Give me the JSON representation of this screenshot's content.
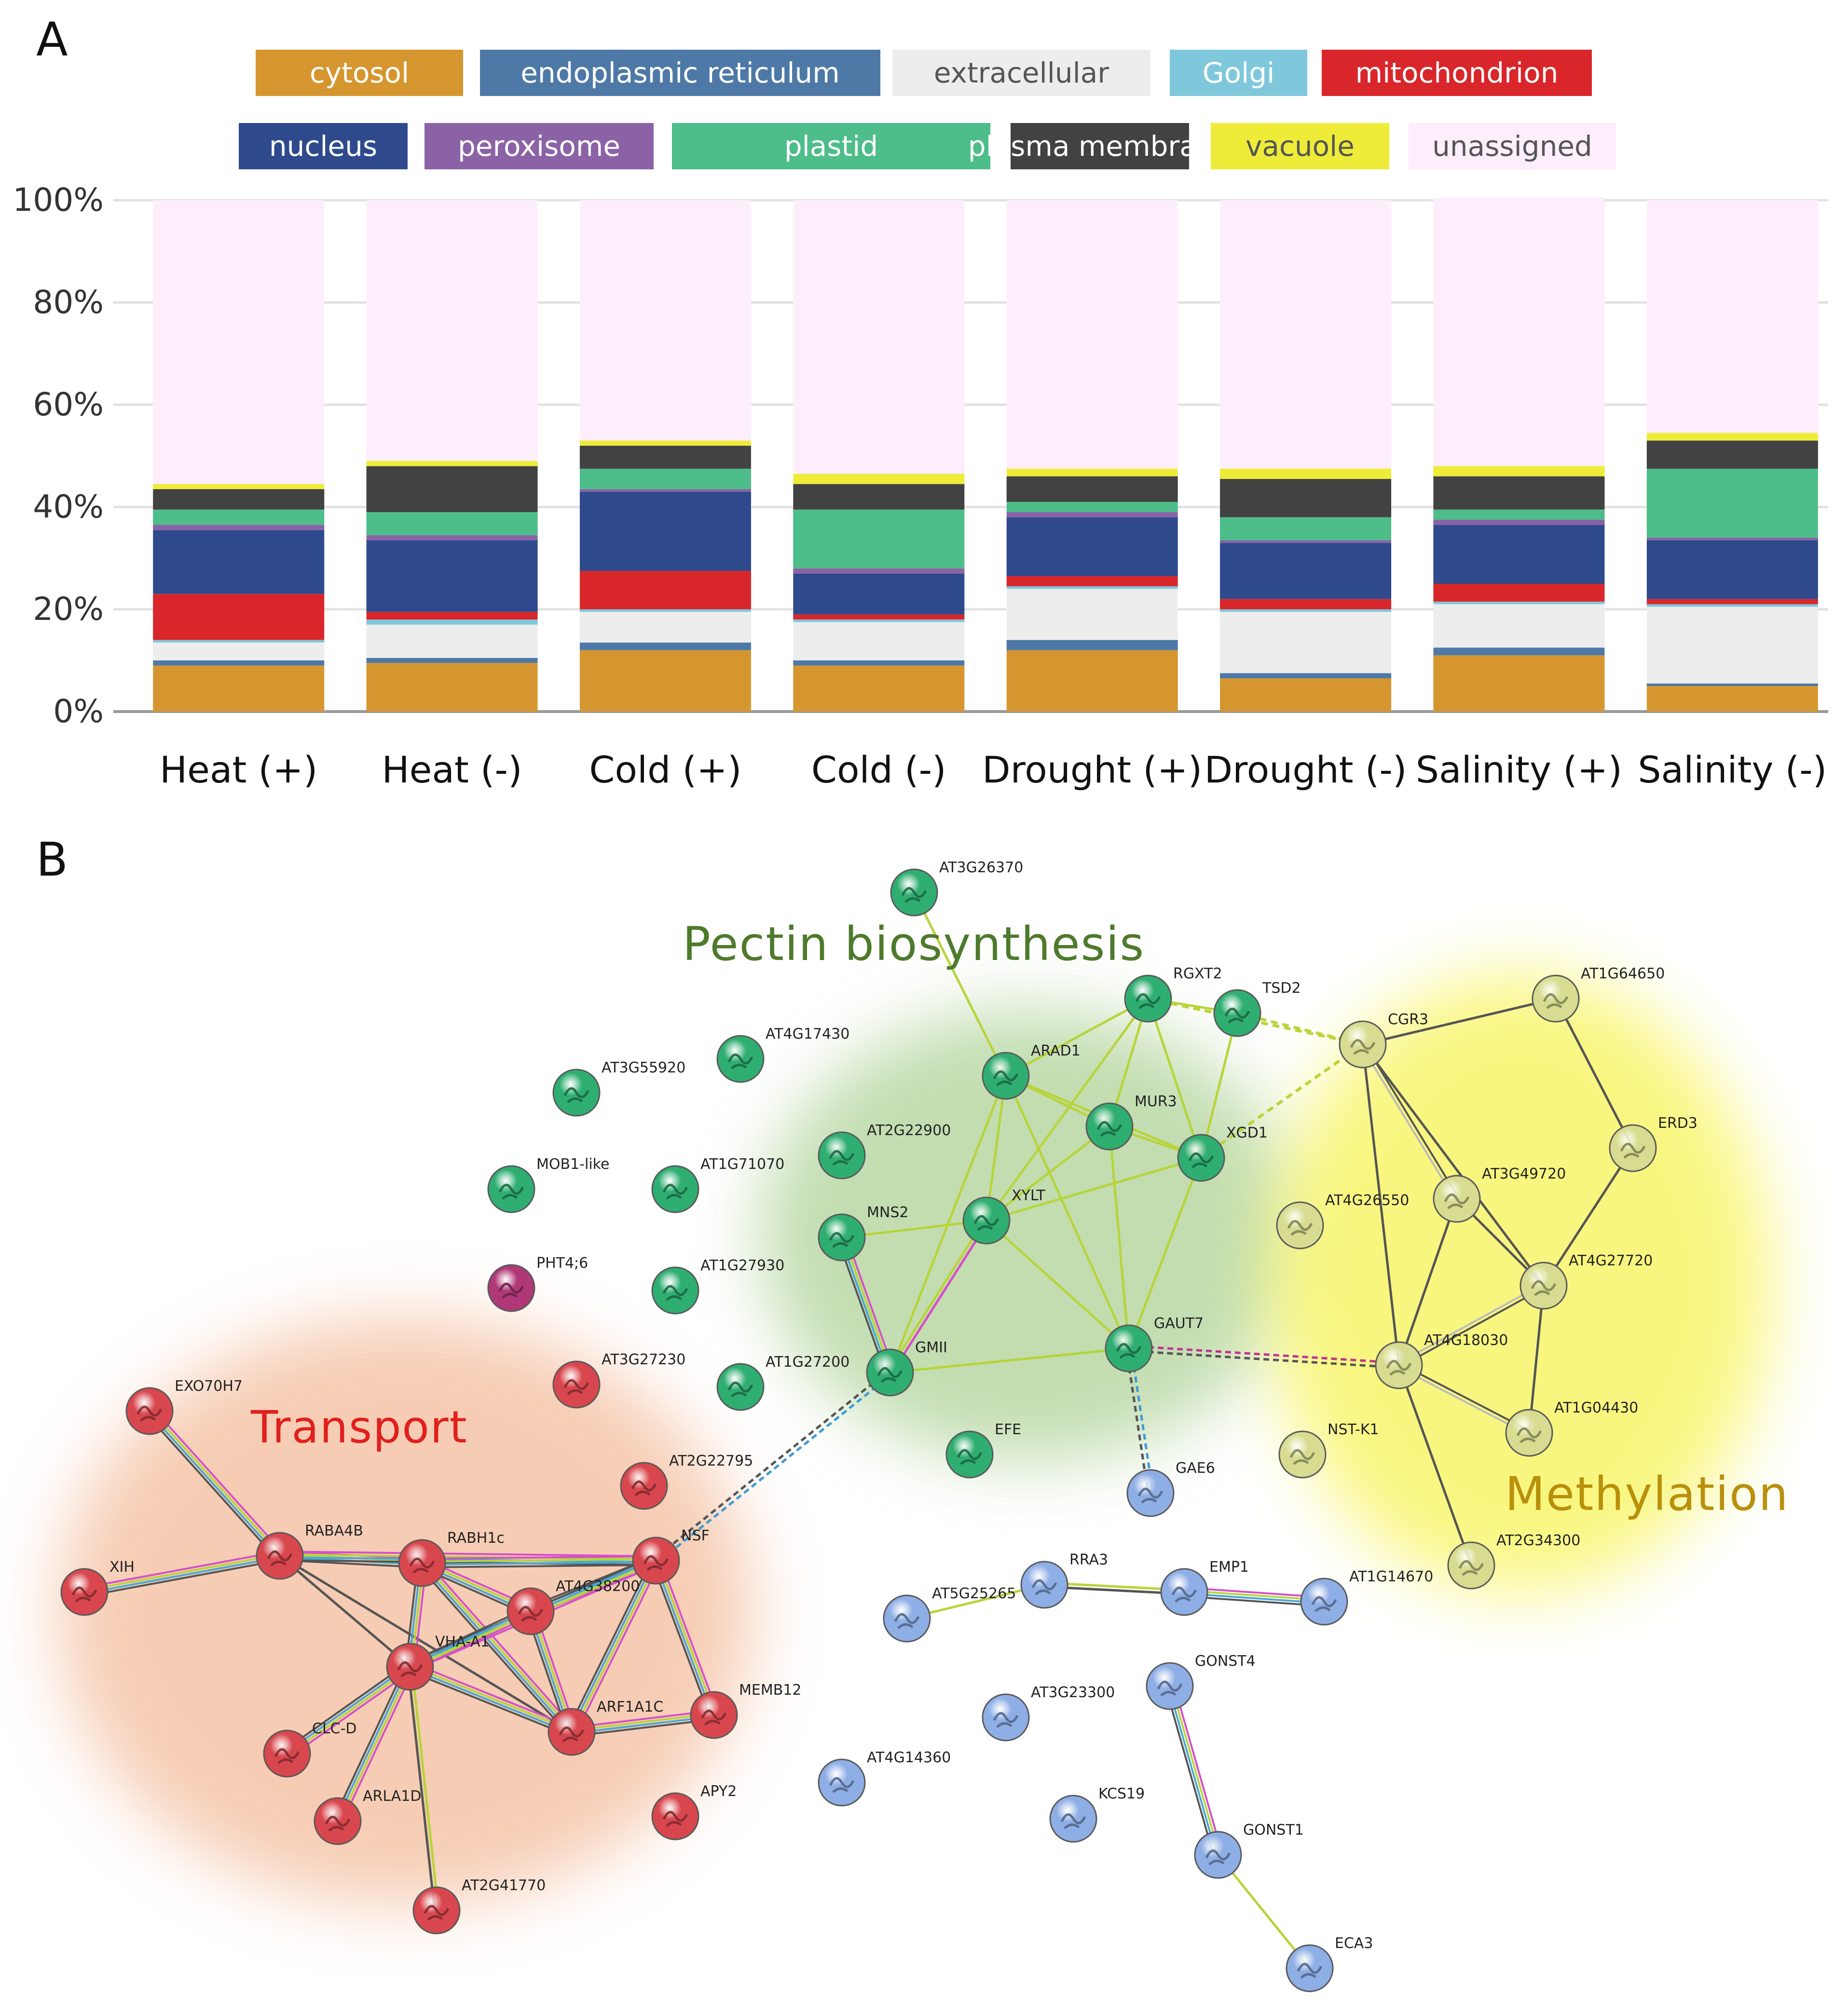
{
  "panel_a_label": "A",
  "panel_b_label": "B",
  "chart_data": {
    "type": "bar",
    "stacked": true,
    "title": "",
    "xlabel": "",
    "ylabel": "",
    "ylim": [
      0,
      100
    ],
    "yticks": [
      "0%",
      "20%",
      "40%",
      "60%",
      "80%",
      "100%"
    ],
    "grid": true,
    "legend_position": "top",
    "categories": [
      "Heat (+)",
      "Heat (-)",
      "Cold (+)",
      "Cold (-)",
      "Drought (+)",
      "Drought (-)",
      "Salinity (+)",
      "Salinity (-)"
    ],
    "series": [
      {
        "name": "cytosol",
        "color": "#D6962F",
        "values": [
          9,
          9.5,
          12,
          9,
          12,
          6.5,
          11,
          5
        ]
      },
      {
        "name": "endoplasmic reticulum",
        "color": "#4E79A7",
        "values": [
          1,
          1,
          1.5,
          1,
          2,
          1,
          1.5,
          0.5
        ]
      },
      {
        "name": "extracellular",
        "color": "#EDEDED",
        "values": [
          3.5,
          6.5,
          6,
          7.5,
          10,
          12,
          8.5,
          15
        ]
      },
      {
        "name": "Golgi",
        "color": "#7FC8DC",
        "values": [
          0.5,
          1,
          0.5,
          0.5,
          0.5,
          0.5,
          0.5,
          0.5
        ]
      },
      {
        "name": "mitochondrion",
        "color": "#D9262B",
        "values": [
          9,
          1.5,
          7.5,
          1,
          2,
          2,
          3.5,
          1
        ]
      },
      {
        "name": "nucleus",
        "color": "#2E4A8C",
        "values": [
          12.5,
          14,
          15.5,
          8,
          11.5,
          11,
          11.5,
          11.5
        ]
      },
      {
        "name": "peroxisome",
        "color": "#8B62A6",
        "values": [
          1,
          1,
          0.5,
          1,
          1,
          0.5,
          1,
          0.5
        ]
      },
      {
        "name": "plastid",
        "color": "#4DBD8A",
        "values": [
          3,
          4.5,
          4,
          11.5,
          2,
          4.5,
          2,
          13.5
        ]
      },
      {
        "name": "plasma membrane",
        "color": "#424242",
        "values": [
          4,
          9,
          4.5,
          5,
          5,
          7.5,
          6.5,
          5.5
        ]
      },
      {
        "name": "vacuole",
        "color": "#EEEC38",
        "values": [
          1,
          1,
          1,
          2,
          1.5,
          2,
          2,
          1.5
        ]
      },
      {
        "name": "unassigned",
        "color": "#FDEEFB",
        "values": [
          55.5,
          51,
          47,
          53.5,
          52.5,
          52.5,
          52.5,
          45.5
        ]
      }
    ]
  },
  "network": {
    "clusters": [
      {
        "id": "transport",
        "label": "Transport",
        "fill": "#F5C5A8",
        "label_color": "#E0201D"
      },
      {
        "id": "pectin",
        "label": "Pectin biosynthesis",
        "fill": "#B9D8A4",
        "label_color": "#4E7A2C"
      },
      {
        "id": "methylation",
        "label": "Methylation",
        "fill": "#F8F56A",
        "label_color": "#B8900A"
      }
    ],
    "node_colors": {
      "red": "#D9474E",
      "green": "#2FAE72",
      "yellow": "#D7DC90",
      "blue": "#8EAEE6",
      "purple": "#B03878"
    },
    "nodes": [
      {
        "id": "AT3G26370",
        "label": "AT3G26370",
        "color": "green"
      },
      {
        "id": "RGXT2",
        "label": "RGXT2",
        "color": "green"
      },
      {
        "id": "TSD2",
        "label": "TSD2",
        "color": "green"
      },
      {
        "id": "ARAD1",
        "label": "ARAD1",
        "color": "green"
      },
      {
        "id": "MUR3",
        "label": "MUR3",
        "color": "green"
      },
      {
        "id": "XGD1",
        "label": "XGD1",
        "color": "green"
      },
      {
        "id": "AT2G22900",
        "label": "AT2G22900",
        "color": "green"
      },
      {
        "id": "XYLT",
        "label": "XYLT",
        "color": "green"
      },
      {
        "id": "MNS2",
        "label": "MNS2",
        "color": "green"
      },
      {
        "id": "GMII",
        "label": "GMII",
        "color": "green"
      },
      {
        "id": "GAUT7",
        "label": "GAUT7",
        "color": "green"
      },
      {
        "id": "EFE",
        "label": "EFE",
        "color": "green"
      },
      {
        "id": "AT4G17430",
        "label": "AT4G17430",
        "color": "green"
      },
      {
        "id": "AT3G55920",
        "label": "AT3G55920",
        "color": "green"
      },
      {
        "id": "MOB1-like",
        "label": "MOB1-like",
        "color": "green"
      },
      {
        "id": "AT1G71070",
        "label": "AT1G71070",
        "color": "green"
      },
      {
        "id": "AT1G27930",
        "label": "AT1G27930",
        "color": "green"
      },
      {
        "id": "AT1G27200",
        "label": "AT1G27200",
        "color": "green"
      },
      {
        "id": "PHT4;6",
        "label": "PHT4;6",
        "color": "purple"
      },
      {
        "id": "AT3G27230",
        "label": "AT3G27230",
        "color": "red"
      },
      {
        "id": "AT2G22795",
        "label": "AT2G22795",
        "color": "red"
      },
      {
        "id": "EXO70H7",
        "label": "EXO70H7",
        "color": "red"
      },
      {
        "id": "XIH",
        "label": "XIH",
        "color": "red"
      },
      {
        "id": "RABA4B",
        "label": "RABA4B",
        "color": "red"
      },
      {
        "id": "RABH1c",
        "label": "RABH1c",
        "color": "red"
      },
      {
        "id": "NSF",
        "label": "NSF",
        "color": "red"
      },
      {
        "id": "AT4G38200",
        "label": "AT4G38200",
        "color": "red"
      },
      {
        "id": "VHA-A1",
        "label": "VHA-A1",
        "color": "red"
      },
      {
        "id": "CLC-D",
        "label": "CLC-D",
        "color": "red"
      },
      {
        "id": "ARF1A1C",
        "label": "ARF1A1C",
        "color": "red"
      },
      {
        "id": "MEMB12",
        "label": "MEMB12",
        "color": "red"
      },
      {
        "id": "ARLA1D",
        "label": "ARLA1D",
        "color": "red"
      },
      {
        "id": "APY2",
        "label": "APY2",
        "color": "red"
      },
      {
        "id": "AT2G41770",
        "label": "AT2G41770",
        "color": "red"
      },
      {
        "id": "CGR3",
        "label": "CGR3",
        "color": "yellow"
      },
      {
        "id": "AT1G64650",
        "label": "AT1G64650",
        "color": "yellow"
      },
      {
        "id": "ERD3",
        "label": "ERD3",
        "color": "yellow"
      },
      {
        "id": "AT3G49720",
        "label": "AT3G49720",
        "color": "yellow"
      },
      {
        "id": "AT4G26550",
        "label": "AT4G26550",
        "color": "yellow"
      },
      {
        "id": "AT4G27720",
        "label": "AT4G27720",
        "color": "yellow"
      },
      {
        "id": "AT4G18030",
        "label": "AT4G18030",
        "color": "yellow"
      },
      {
        "id": "AT1G04430",
        "label": "AT1G04430",
        "color": "yellow"
      },
      {
        "id": "NST-K1",
        "label": "NST-K1",
        "color": "yellow"
      },
      {
        "id": "AT2G34300",
        "label": "AT2G34300",
        "color": "yellow"
      },
      {
        "id": "GAE6",
        "label": "GAE6",
        "color": "blue"
      },
      {
        "id": "AT5G25265",
        "label": "AT5G25265",
        "color": "blue"
      },
      {
        "id": "RRA3",
        "label": "RRA3",
        "color": "blue"
      },
      {
        "id": "EMP1",
        "label": "EMP1",
        "color": "blue"
      },
      {
        "id": "AT1G14670",
        "label": "AT1G14670",
        "color": "blue"
      },
      {
        "id": "GONST4",
        "label": "GONST4",
        "color": "blue"
      },
      {
        "id": "AT3G23300",
        "label": "AT3G23300",
        "color": "blue"
      },
      {
        "id": "AT4G14360",
        "label": "AT4G14360",
        "color": "blue"
      },
      {
        "id": "KCS19",
        "label": "KCS19",
        "color": "blue"
      },
      {
        "id": "GONST1",
        "label": "GONST1",
        "color": "blue"
      },
      {
        "id": "ECA3",
        "label": "ECA3",
        "color": "blue"
      }
    ],
    "edges": [
      {
        "from": "AT3G26370",
        "to": "ARAD1",
        "style": "green"
      },
      {
        "from": "ARAD1",
        "to": "RGXT2",
        "style": "green"
      },
      {
        "from": "ARAD1",
        "to": "MUR3",
        "style": "green"
      },
      {
        "from": "ARAD1",
        "to": "XYLT",
        "style": "green"
      },
      {
        "from": "ARAD1",
        "to": "XGD1",
        "style": "green"
      },
      {
        "from": "ARAD1",
        "to": "GAUT7",
        "style": "green"
      },
      {
        "from": "ARAD1",
        "to": "GMII",
        "style": "green"
      },
      {
        "from": "RGXT2",
        "to": "TSD2",
        "style": "green"
      },
      {
        "from": "RGXT2",
        "to": "XYLT",
        "style": "green"
      },
      {
        "from": "RGXT2",
        "to": "MUR3",
        "style": "green"
      },
      {
        "from": "RGXT2",
        "to": "XGD1",
        "style": "green"
      },
      {
        "from": "TSD2",
        "to": "XGD1",
        "style": "green"
      },
      {
        "from": "MUR3",
        "to": "XYLT",
        "style": "green"
      },
      {
        "from": "MUR3",
        "to": "GAUT7",
        "style": "green"
      },
      {
        "from": "MUR3",
        "to": "XGD1",
        "style": "green"
      },
      {
        "from": "XYLT",
        "to": "XGD1",
        "style": "green"
      },
      {
        "from": "XYLT",
        "to": "MNS2",
        "style": "green"
      },
      {
        "from": "XYLT",
        "to": "GAUT7",
        "style": "green"
      },
      {
        "from": "XYLT",
        "to": "GMII",
        "style": "pinkgreen"
      },
      {
        "from": "MNS2",
        "to": "GMII",
        "style": "multi"
      },
      {
        "from": "GMII",
        "to": "GAUT7",
        "style": "green"
      },
      {
        "from": "XGD1",
        "to": "GAUT7",
        "style": "green"
      },
      {
        "from": "TSD2",
        "to": "CGR3",
        "style": "dashgreen"
      },
      {
        "from": "RGXT2",
        "to": "CGR3",
        "style": "dashgreen"
      },
      {
        "from": "XGD1",
        "to": "CGR3",
        "style": "dashgreen"
      },
      {
        "from": "GAUT7",
        "to": "AT4G18030",
        "style": "dashpurple"
      },
      {
        "from": "GAUT7",
        "to": "GAE6",
        "style": "dashblue"
      },
      {
        "from": "GMII",
        "to": "NSF",
        "style": "dashblue"
      },
      {
        "from": "CGR3",
        "to": "AT1G64650",
        "style": "dark"
      },
      {
        "from": "CGR3",
        "to": "AT3G49720",
        "style": "double"
      },
      {
        "from": "CGR3",
        "to": "AT4G18030",
        "style": "dark"
      },
      {
        "from": "CGR3",
        "to": "AT4G27720",
        "style": "dark"
      },
      {
        "from": "AT1G64650",
        "to": "ERD3",
        "style": "dark"
      },
      {
        "from": "ERD3",
        "to": "AT4G27720",
        "style": "dark"
      },
      {
        "from": "AT3G49720",
        "to": "AT4G27720",
        "style": "dark"
      },
      {
        "from": "AT3G49720",
        "to": "AT4G18030",
        "style": "dark"
      },
      {
        "from": "AT4G27720",
        "to": "AT4G18030",
        "style": "double"
      },
      {
        "from": "AT4G27720",
        "to": "AT1G04430",
        "style": "dark"
      },
      {
        "from": "AT4G18030",
        "to": "AT1G04430",
        "style": "double"
      },
      {
        "from": "AT4G18030",
        "to": "AT2G34300",
        "style": "dark"
      },
      {
        "from": "EXO70H7",
        "to": "RABA4B",
        "style": "multi"
      },
      {
        "from": "XIH",
        "to": "RABA4B",
        "style": "multi"
      },
      {
        "from": "RABA4B",
        "to": "RABH1c",
        "style": "multi"
      },
      {
        "from": "RABA4B",
        "to": "NSF",
        "style": "multi"
      },
      {
        "from": "RABA4B",
        "to": "VHA-A1",
        "style": "dark"
      },
      {
        "from": "RABA4B",
        "to": "ARF1A1C",
        "style": "dark"
      },
      {
        "from": "RABH1c",
        "to": "NSF",
        "style": "multi"
      },
      {
        "from": "RABH1c",
        "to": "AT4G38200",
        "style": "multi"
      },
      {
        "from": "RABH1c",
        "to": "VHA-A1",
        "style": "multi"
      },
      {
        "from": "RABH1c",
        "to": "ARF1A1C",
        "style": "multi"
      },
      {
        "from": "NSF",
        "to": "AT4G38200",
        "style": "multi"
      },
      {
        "from": "NSF",
        "to": "VHA-A1",
        "style": "multi"
      },
      {
        "from": "NSF",
        "to": "ARF1A1C",
        "style": "multi"
      },
      {
        "from": "NSF",
        "to": "MEMB12",
        "style": "multi"
      },
      {
        "from": "AT4G38200",
        "to": "VHA-A1",
        "style": "multi"
      },
      {
        "from": "AT4G38200",
        "to": "ARF1A1C",
        "style": "multi"
      },
      {
        "from": "VHA-A1",
        "to": "ARF1A1C",
        "style": "multi"
      },
      {
        "from": "VHA-A1",
        "to": "CLC-D",
        "style": "multi"
      },
      {
        "from": "VHA-A1",
        "to": "ARLA1D",
        "style": "multi"
      },
      {
        "from": "VHA-A1",
        "to": "AT2G41770",
        "style": "greendark"
      },
      {
        "from": "ARF1A1C",
        "to": "MEMB12",
        "style": "multi"
      },
      {
        "from": "AT5G25265",
        "to": "RRA3",
        "style": "green"
      },
      {
        "from": "RRA3",
        "to": "EMP1",
        "style": "greendark"
      },
      {
        "from": "EMP1",
        "to": "AT1G14670",
        "style": "multi"
      },
      {
        "from": "GONST4",
        "to": "GONST1",
        "style": "multi"
      },
      {
        "from": "GONST1",
        "to": "ECA3",
        "style": "green"
      }
    ]
  }
}
